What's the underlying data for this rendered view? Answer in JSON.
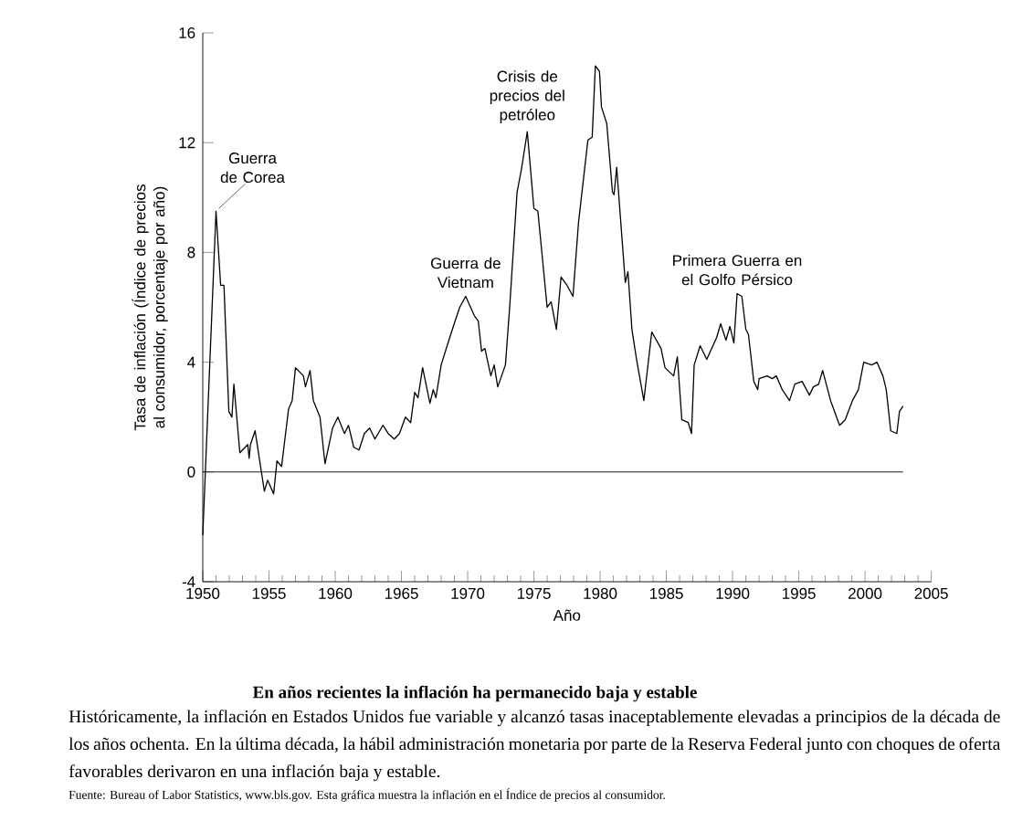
{
  "chart_data": {
    "type": "line",
    "title": "En años recientes la inflación ha permanecido baja y estable",
    "subtitle": "Históricamente, la inflación en Estados Unidos fue variable y alcanzó tasas inaceptablemente elevadas a principios de la década de los años ochenta. En la última década, la hábil administración monetaria por parte de la Reserva Federal junto con choques de oferta favorables derivaron en una inflación baja y estable.",
    "xlabel": "Año",
    "ylabel": "Tasa de inflación (Índice de precios al consumidor, porcentaje por año)",
    "x": [
      1950.0,
      1951.0,
      1951.35,
      1951.6,
      1951.97,
      1952.2,
      1952.35,
      1952.8,
      1953.4,
      1953.5,
      1953.6,
      1953.95,
      1954.65,
      1954.9,
      1955.35,
      1955.6,
      1955.95,
      1956.48,
      1956.75,
      1957.0,
      1957.6,
      1957.75,
      1958.1,
      1958.35,
      1958.85,
      1959.23,
      1959.8,
      1960.2,
      1960.7,
      1961.0,
      1961.4,
      1961.8,
      1962.2,
      1962.6,
      1963.0,
      1963.6,
      1964.0,
      1964.45,
      1964.85,
      1965.3,
      1965.7,
      1966.0,
      1966.25,
      1966.6,
      1967.15,
      1967.4,
      1967.6,
      1968.0,
      1968.45,
      1969.05,
      1969.4,
      1969.85,
      1970.5,
      1970.8,
      1971.05,
      1971.3,
      1971.75,
      1972.0,
      1972.27,
      1972.85,
      1973.17,
      1973.73,
      1974.05,
      1974.5,
      1975.0,
      1975.3,
      1976.0,
      1976.3,
      1976.7,
      1977.05,
      1977.5,
      1977.95,
      1978.37,
      1979.08,
      1979.4,
      1979.64,
      1979.95,
      1980.1,
      1980.5,
      1980.93,
      1981.05,
      1981.25,
      1981.9,
      1982.1,
      1982.4,
      1982.75,
      1983.3,
      1983.9,
      1984.6,
      1984.9,
      1985.55,
      1985.83,
      1986.17,
      1986.65,
      1986.9,
      1987.1,
      1987.55,
      1988.05,
      1988.8,
      1989.1,
      1989.5,
      1989.8,
      1990.1,
      1990.34,
      1990.7,
      1991.0,
      1991.2,
      1991.6,
      1991.9,
      1992.0,
      1992.6,
      1993.0,
      1993.3,
      1993.75,
      1994.3,
      1994.7,
      1995.25,
      1995.8,
      1996.1,
      1996.5,
      1996.8,
      1997.4,
      1998.08,
      1998.5,
      1999.05,
      1999.5,
      1999.9,
      2000.5,
      2000.9,
      2001.35,
      2001.6,
      2001.94,
      2002.4,
      2002.6,
      2002.87
    ],
    "values": [
      -2.3,
      9.5,
      6.8,
      6.8,
      2.2,
      2.0,
      3.2,
      0.7,
      1.0,
      0.5,
      1.0,
      1.5,
      -0.7,
      -0.3,
      -0.8,
      0.4,
      0.2,
      2.3,
      2.6,
      3.8,
      3.5,
      3.1,
      3.7,
      2.6,
      2.0,
      0.3,
      1.6,
      2.0,
      1.4,
      1.7,
      0.9,
      0.8,
      1.4,
      1.6,
      1.2,
      1.7,
      1.4,
      1.2,
      1.4,
      2.0,
      1.8,
      2.9,
      2.7,
      3.8,
      2.5,
      3.0,
      2.7,
      3.9,
      4.6,
      5.5,
      6.0,
      6.4,
      5.7,
      5.5,
      4.4,
      4.5,
      3.5,
      3.9,
      3.1,
      3.9,
      6.0,
      10.2,
      11.0,
      12.4,
      9.6,
      9.5,
      6.0,
      6.2,
      5.2,
      7.1,
      6.8,
      6.4,
      9.1,
      12.1,
      12.2,
      14.8,
      14.6,
      13.3,
      12.7,
      10.2,
      10.1,
      11.1,
      6.9,
      7.3,
      5.2,
      4.1,
      2.6,
      5.1,
      4.5,
      3.8,
      3.5,
      4.2,
      1.9,
      1.8,
      1.4,
      3.9,
      4.6,
      4.1,
      4.9,
      5.4,
      4.8,
      5.3,
      4.7,
      6.5,
      6.4,
      5.2,
      5.0,
      3.3,
      3.0,
      3.4,
      3.5,
      3.4,
      3.5,
      3.0,
      2.6,
      3.2,
      3.3,
      2.8,
      3.1,
      3.2,
      3.7,
      2.6,
      1.7,
      1.9,
      2.6,
      3.0,
      4.0,
      3.9,
      4.0,
      3.5,
      3.0,
      1.5,
      1.4,
      2.2,
      2.4
    ],
    "color": "#000000",
    "xlim": [
      1950,
      2005
    ],
    "xticks": [
      1950,
      1955,
      1960,
      1965,
      1970,
      1975,
      1980,
      1985,
      1990,
      1995,
      2000,
      2005
    ],
    "ylim": [
      -4,
      16
    ],
    "yticks": [
      -4,
      0,
      4,
      8,
      12,
      16
    ],
    "grid": false,
    "marker": "none",
    "line_style": "solid",
    "ref_lines": [
      {
        "axis": "y",
        "value": 0
      }
    ],
    "annotations": [
      {
        "text": "Guerra de Corea",
        "x": 1951.0,
        "y": 9.5
      },
      {
        "text": "Guerra de Vietnam",
        "x": 1969.85,
        "y": 6.4
      },
      {
        "text": "Crisis de precios del petróleo",
        "x": 1974.5,
        "y": 12.4
      },
      {
        "text": "Primera Guerra en el Golfo Pérsico",
        "x": 1990.34,
        "y": 6.5
      },
      "Fuente: Bureau of Labor Statistics, www.bls.gov. Esta gráfica muestra la inflación en el Índice de precios al consumidor."
    ]
  }
}
